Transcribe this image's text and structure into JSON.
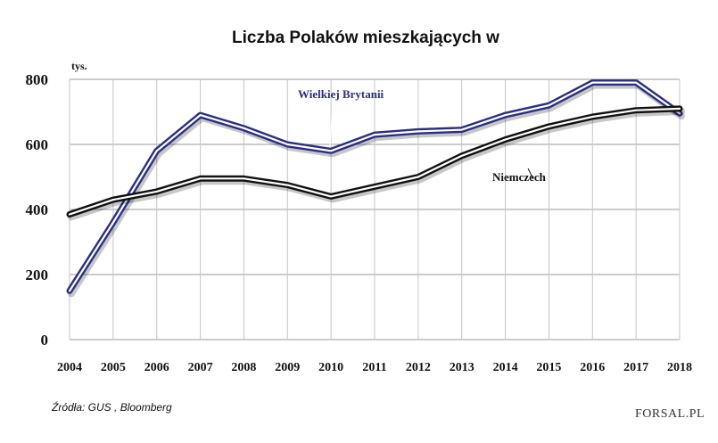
{
  "chart_data": {
    "type": "line",
    "title": "Liczba Polaków mieszkających w",
    "unit_label": "tys.",
    "x": [
      "2004",
      "2005",
      "2006",
      "2007",
      "2008",
      "2009",
      "2010",
      "2011",
      "2012",
      "2013",
      "2014",
      "2015",
      "2016",
      "2017",
      "2018"
    ],
    "yticks": [
      "0",
      "200",
      "400",
      "600",
      "800"
    ],
    "ylim": [
      0,
      800
    ],
    "grid": "vertical",
    "series": [
      {
        "name": "Wielkiej Brytanii",
        "color": "#2b2f80",
        "values": [
          150,
          360,
          580,
          690,
          650,
          600,
          580,
          630,
          640,
          645,
          690,
          720,
          790,
          790,
          695
        ]
      },
      {
        "name": "Niemczech",
        "color": "#111111",
        "values": [
          385,
          430,
          455,
          495,
          495,
          475,
          440,
          470,
          500,
          565,
          615,
          655,
          685,
          705,
          710
        ]
      }
    ],
    "source": "Źródła: GUS , Bloomberg",
    "brand": "FORSAL.PL"
  }
}
